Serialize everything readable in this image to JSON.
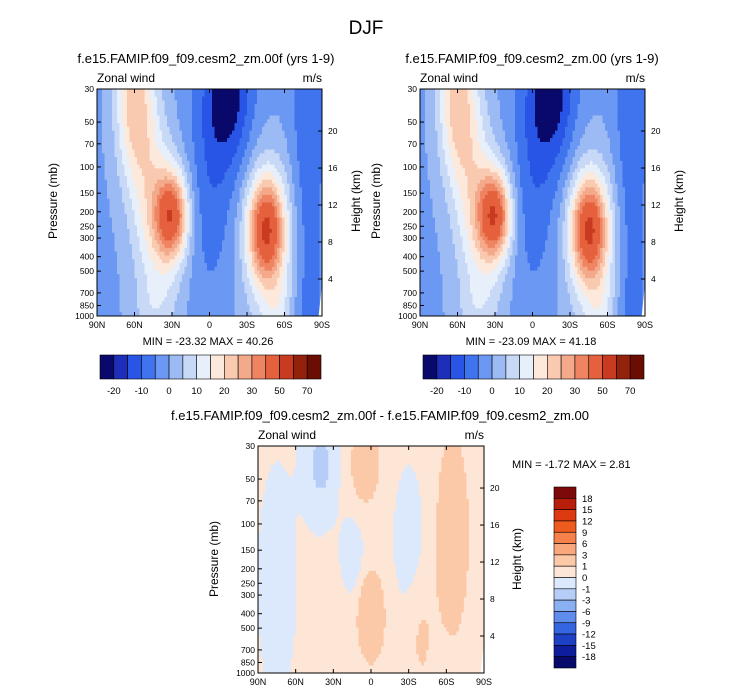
{
  "page_title": "DJF",
  "panels": [
    {
      "title": "f.e15.FAMIP.f09_f09.cesm2_zm.00f (yrs 1-9)",
      "left_label": "Zonal wind",
      "right_label": "m/s",
      "ylabel": "Pressure (mb)",
      "ylabel_right": "Height (km)",
      "minmax": "MIN = -23.32   MAX = 40.26"
    },
    {
      "title": "f.e15.FAMIP.f09_f09.cesm2_zm.00 (yrs 1-9)",
      "left_label": "Zonal wind",
      "right_label": "m/s",
      "ylabel": "Pressure (mb)",
      "ylabel_right": "Height (km)",
      "minmax": "MIN = -23.09   MAX = 41.18"
    },
    {
      "title": "f.e15.FAMIP.f09_f09.cesm2_zm.00f - f.e15.FAMIP.f09_f09.cesm2_zm.00",
      "left_label": "Zonal wind",
      "right_label": "m/s",
      "ylabel": "Pressure (mb)",
      "ylabel_right": "Height (km)",
      "minmax": "MIN =  -1.72   MAX =   2.81"
    }
  ],
  "x_ticks": [
    "90N",
    "60N",
    "30N",
    "0",
    "30S",
    "60S",
    "90S"
  ],
  "p_ticks": [
    "30",
    "50",
    "70",
    "100",
    "150",
    "200",
    "250",
    "300",
    "400",
    "500",
    "700",
    "850",
    "1000"
  ],
  "h_ticks": [
    "4",
    "8",
    "12",
    "16",
    "20"
  ],
  "colorbar_main": {
    "labels": [
      "-20",
      "-10",
      "0",
      "10",
      "20",
      "30",
      "50",
      "70"
    ],
    "colors": [
      "#08096b",
      "#1d2fb8",
      "#2855e6",
      "#3f74ee",
      "#6b98f2",
      "#9cbaf3",
      "#c7d9f7",
      "#e7effb",
      "#fde8dc",
      "#f9c9b0",
      "#f4a98a",
      "#ee8462",
      "#e5603c",
      "#c93b20",
      "#93220c",
      "#6a0e04"
    ]
  },
  "colorbar_diff": {
    "labels": [
      "18",
      "15",
      "12",
      "9",
      "6",
      "3",
      "1",
      "0",
      "-1",
      "-3",
      "-6",
      "-9",
      "-12",
      "-15",
      "-18"
    ],
    "colors": [
      "#7d0a0a",
      "#b91d0c",
      "#de3a12",
      "#ef5a1e",
      "#f6814b",
      "#f9a77b",
      "#fcc9a8",
      "#fde6d6",
      "#dce8fb",
      "#b6cdf7",
      "#8ab0f2",
      "#5e8ded",
      "#3566e2",
      "#1e40c4",
      "#0d1d9c",
      "#070a6a"
    ]
  },
  "chart_data": [
    {
      "type": "heatmap",
      "title": "f.e15.FAMIP.f09_f09.cesm2_zm.00f (yrs 1-9)",
      "xlabel": "",
      "ylabel": "Pressure (mb)",
      "x": [
        "90N",
        "60N",
        "30N",
        "0",
        "30S",
        "60S",
        "90S"
      ],
      "ylim": [
        1000,
        30
      ],
      "y_scale": "log",
      "min": -23.32,
      "max": 40.26,
      "features": [
        {
          "lat": 30,
          "p": 200,
          "u": 40
        },
        {
          "lat": -45,
          "p": 250,
          "u": 32
        },
        {
          "lat": -15,
          "p": 30,
          "u": -23
        },
        {
          "lat": 65,
          "p": 35,
          "u": 12
        }
      ]
    },
    {
      "type": "heatmap",
      "title": "f.e15.FAMIP.f09_f09.cesm2_zm.00 (yrs 1-9)",
      "xlabel": "",
      "ylabel": "Pressure (mb)",
      "x": [
        "90N",
        "60N",
        "30N",
        "0",
        "30S",
        "60S",
        "90S"
      ],
      "ylim": [
        1000,
        30
      ],
      "y_scale": "log",
      "min": -23.09,
      "max": 41.18,
      "features": [
        {
          "lat": 30,
          "p": 200,
          "u": 41
        },
        {
          "lat": -45,
          "p": 250,
          "u": 32
        },
        {
          "lat": -15,
          "p": 30,
          "u": -23
        },
        {
          "lat": 65,
          "p": 35,
          "u": 12
        }
      ]
    },
    {
      "type": "heatmap",
      "title": "f.e15.FAMIP.f09_f09.cesm2_zm.00f - f.e15.FAMIP.f09_f09.cesm2_zm.00",
      "xlabel": "",
      "ylabel": "Pressure (mb)",
      "x": [
        "90N",
        "60N",
        "30N",
        "0",
        "30S",
        "60S",
        "90S"
      ],
      "ylim": [
        1000,
        30
      ],
      "y_scale": "log",
      "min": -1.72,
      "max": 2.81,
      "features": [
        {
          "lat": 0,
          "p": 450,
          "u": 2.8
        },
        {
          "lat": -65,
          "p": 100,
          "u": 1.5
        },
        {
          "lat": 5,
          "p": 40,
          "u": 1.2
        },
        {
          "lat": 40,
          "p": 40,
          "u": -1.5
        },
        {
          "lat": 15,
          "p": 150,
          "u": -1.2
        }
      ]
    }
  ]
}
